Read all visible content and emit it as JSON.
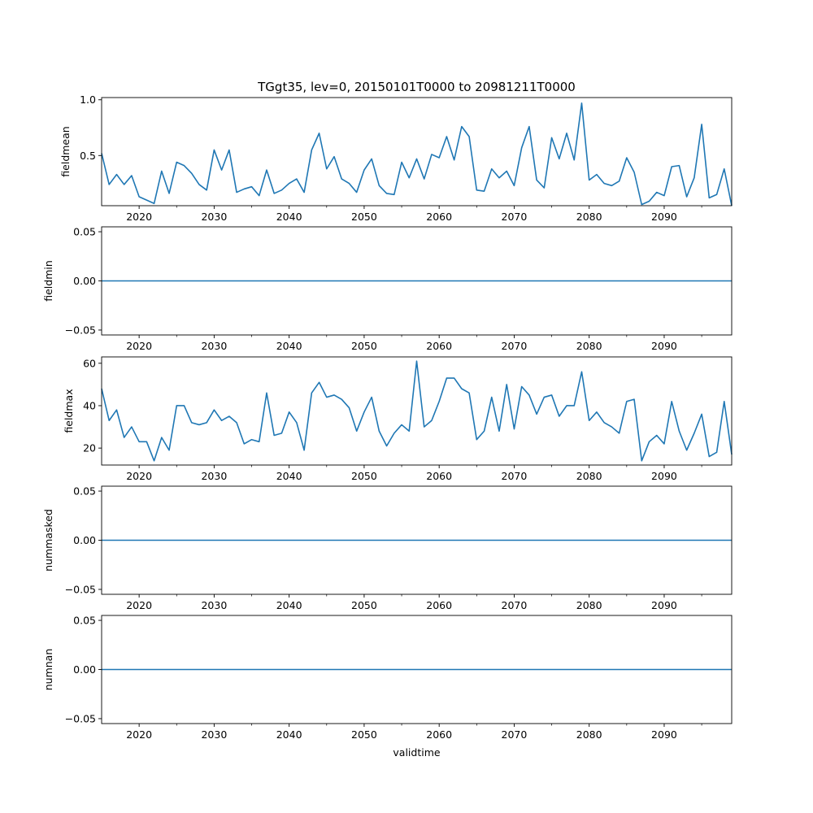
{
  "chart_data": {
    "type": "line",
    "title": "TGgt35, lev=0, 20150101T0000 to 20981211T0000",
    "xlabel": "validtime",
    "color": "#1f77b4",
    "x_start_year": 2015,
    "x_range": [
      2015,
      2099
    ],
    "x_ticks": [
      2020,
      2030,
      2040,
      2050,
      2060,
      2070,
      2080,
      2090
    ],
    "x_tick_labels": [
      "2020",
      "2030",
      "2040",
      "2050",
      "2060",
      "2070",
      "2080",
      "2090"
    ],
    "x_minor_ticks": [
      2025,
      2035,
      2045,
      2055,
      2065,
      2075,
      2085,
      2095
    ],
    "panels": [
      {
        "ylabel": "fieldmean",
        "ylim": [
          0.05,
          1.02
        ],
        "yticks": [
          0.5,
          1.0
        ],
        "ytick_labels": [
          "0.5",
          "1.0"
        ],
        "values": [
          0.52,
          0.24,
          0.33,
          0.24,
          0.32,
          0.13,
          0.1,
          0.07,
          0.36,
          0.16,
          0.44,
          0.41,
          0.34,
          0.24,
          0.19,
          0.55,
          0.37,
          0.55,
          0.17,
          0.2,
          0.22,
          0.14,
          0.37,
          0.16,
          0.19,
          0.25,
          0.29,
          0.17,
          0.55,
          0.7,
          0.38,
          0.49,
          0.29,
          0.25,
          0.17,
          0.37,
          0.47,
          0.23,
          0.16,
          0.15,
          0.44,
          0.3,
          0.47,
          0.29,
          0.51,
          0.48,
          0.67,
          0.46,
          0.76,
          0.67,
          0.19,
          0.18,
          0.38,
          0.3,
          0.36,
          0.23,
          0.57,
          0.76,
          0.28,
          0.21,
          0.66,
          0.47,
          0.7,
          0.46,
          0.97,
          0.28,
          0.33,
          0.25,
          0.23,
          0.27,
          0.48,
          0.35,
          0.06,
          0.09,
          0.17,
          0.14,
          0.4,
          0.41,
          0.13,
          0.3,
          0.78,
          0.12,
          0.15,
          0.38,
          0.05
        ]
      },
      {
        "ylabel": "fieldmin",
        "ylim": [
          -0.055,
          0.055
        ],
        "yticks": [
          -0.05,
          0.0,
          0.05
        ],
        "ytick_labels": [
          "−0.05",
          "0.00",
          "0.05"
        ],
        "constant": 0
      },
      {
        "ylabel": "fieldmax",
        "ylim": [
          12,
          63
        ],
        "yticks": [
          20,
          40,
          60
        ],
        "ytick_labels": [
          "20",
          "40",
          "60"
        ],
        "values": [
          48,
          33,
          38,
          25,
          30,
          23,
          23,
          14,
          25,
          19,
          40,
          40,
          32,
          31,
          32,
          38,
          33,
          35,
          32,
          22,
          24,
          23,
          46,
          26,
          27,
          37,
          32,
          19,
          46,
          51,
          44,
          45,
          43,
          39,
          28,
          37,
          44,
          28,
          21,
          27,
          31,
          28,
          61,
          30,
          33,
          42,
          53,
          53,
          48,
          46,
          24,
          28,
          44,
          28,
          50,
          29,
          49,
          45,
          36,
          44,
          45,
          35,
          40,
          40,
          56,
          33,
          37,
          32,
          30,
          27,
          42,
          43,
          14,
          23,
          26,
          22,
          42,
          28,
          19,
          27,
          36,
          16,
          18,
          42,
          17
        ]
      },
      {
        "ylabel": "nummasked",
        "ylim": [
          -0.055,
          0.055
        ],
        "yticks": [
          -0.05,
          0.0,
          0.05
        ],
        "ytick_labels": [
          "−0.05",
          "0.00",
          "0.05"
        ],
        "constant": 0
      },
      {
        "ylabel": "numnan",
        "ylim": [
          -0.055,
          0.055
        ],
        "yticks": [
          -0.05,
          0.0,
          0.05
        ],
        "ytick_labels": [
          "−0.05",
          "0.00",
          "0.05"
        ],
        "constant": 0
      }
    ]
  }
}
